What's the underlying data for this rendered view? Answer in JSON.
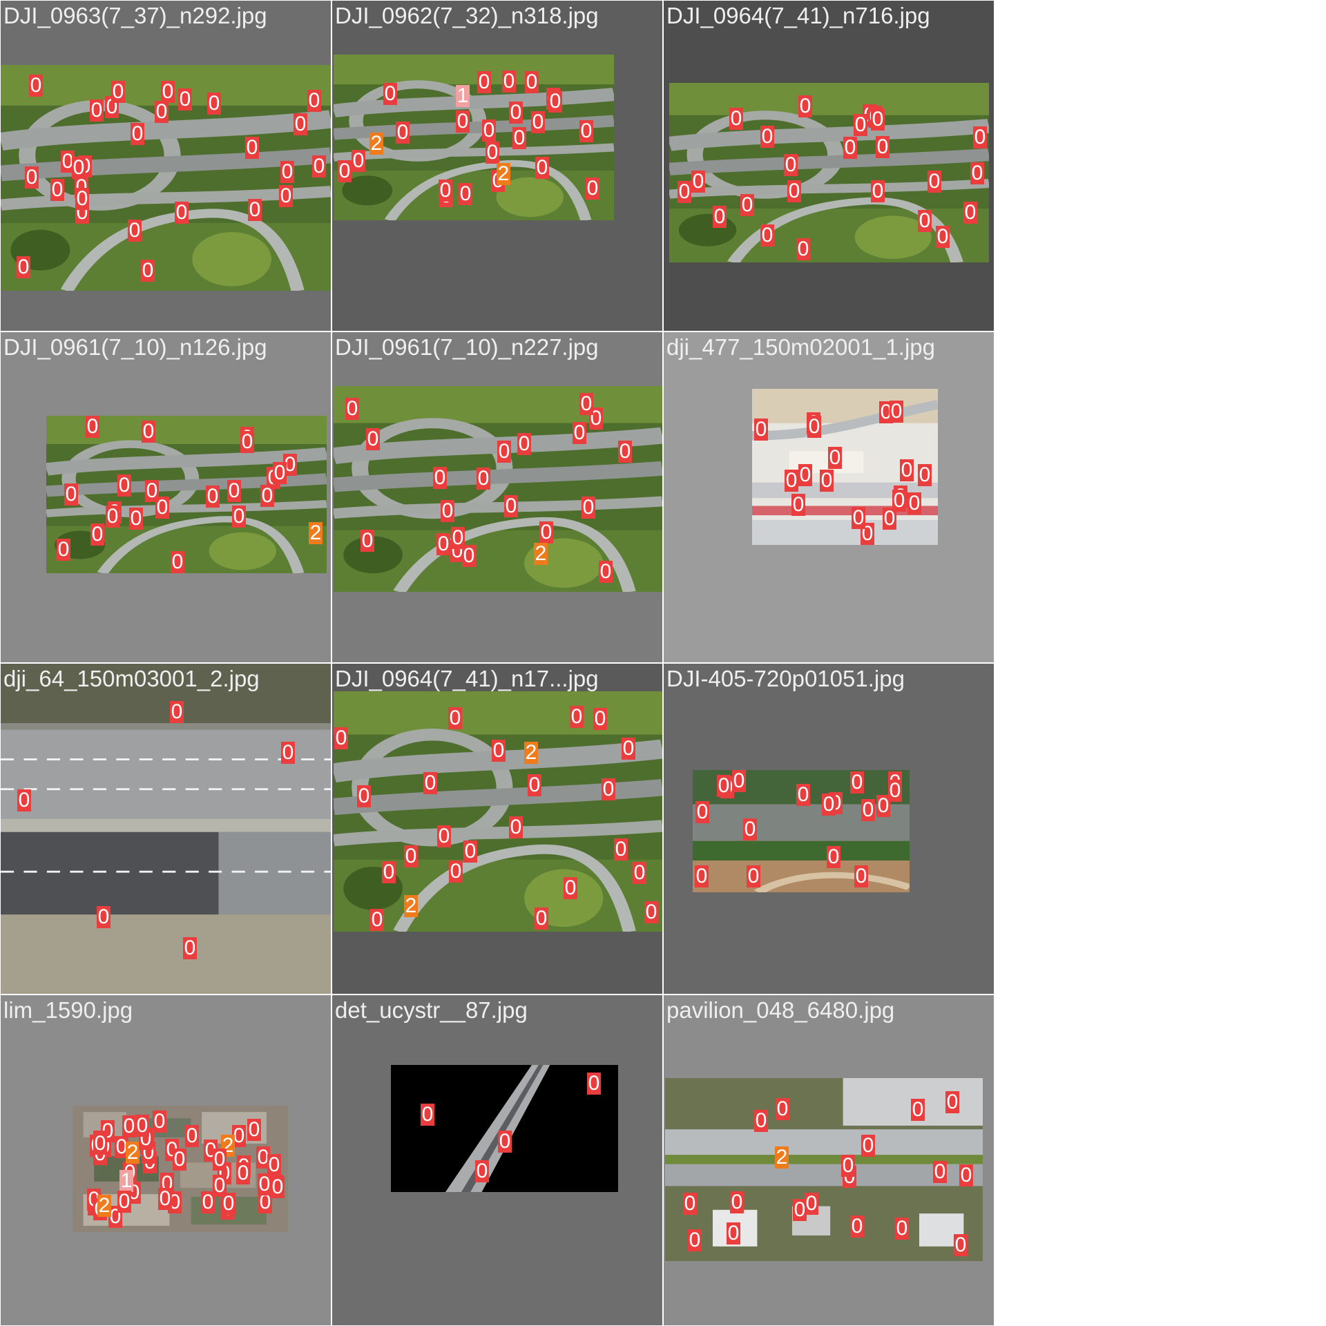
{
  "mosaic": {
    "tiles": [
      {
        "filename": "DJI_0963(7_37)_n292.jpg",
        "bg": "#6e6e6e",
        "scene": "interchange",
        "labels": [
          "0",
          "0",
          "0",
          "0",
          "0",
          "0",
          "0",
          "0",
          "0",
          "0",
          "0",
          "0",
          "0",
          "0",
          "0",
          "0",
          "0",
          "0",
          "0",
          "0",
          "0",
          "0",
          "0",
          "0",
          "0",
          "0",
          "0",
          "0"
        ]
      },
      {
        "filename": "DJI_0962(7_32)_n318.jpg",
        "bg": "#5e5e5e",
        "scene": "interchange",
        "labels": [
          "0",
          "0",
          "0",
          "0",
          "0",
          "0",
          "0",
          "0",
          "0",
          "0",
          "0",
          "0",
          "0",
          "0",
          "0",
          "0",
          "0",
          "0",
          "0",
          "0",
          "1",
          "2",
          "2",
          "0",
          "0"
        ]
      },
      {
        "filename": "DJI_0964(7_41)_n716.jpg",
        "bg": "#4e4e4e",
        "scene": "interchange",
        "labels": [
          "0",
          "0",
          "0",
          "0",
          "0",
          "0",
          "0",
          "0",
          "0",
          "0",
          "0",
          "0",
          "0",
          "0",
          "0",
          "0",
          "0",
          "0",
          "0",
          "0",
          "0",
          "0",
          "0",
          "0"
        ]
      },
      {
        "filename": "DJI_0961(7_10)_n126.jpg",
        "bg": "#8a8a8a",
        "scene": "interchange",
        "labels": [
          "0",
          "0",
          "0",
          "0",
          "0",
          "0",
          "0",
          "0",
          "0",
          "0",
          "0",
          "0",
          "0",
          "0",
          "0",
          "0",
          "0",
          "0",
          "0",
          "0",
          "0",
          "2"
        ]
      },
      {
        "filename": "DJI_0961(7_10)_n227.jpg",
        "bg": "#7c7c7c",
        "scene": "interchange",
        "labels": [
          "0",
          "0",
          "0",
          "0",
          "0",
          "0",
          "0",
          "0",
          "0",
          "0",
          "0",
          "0",
          "0",
          "0",
          "0",
          "0",
          "0",
          "0",
          "2",
          "0",
          "0"
        ]
      },
      {
        "filename": "dji_477_150m02001_1.jpg",
        "bg": "#9c9c9c",
        "scene": "urban",
        "labels": [
          "0",
          "0",
          "0",
          "0",
          "0",
          "0",
          "0",
          "0",
          "0",
          "0",
          "0",
          "0",
          "0",
          "0",
          "0",
          "0",
          "0",
          "0"
        ]
      },
      {
        "filename": "dji_64_150m03001_2.jpg",
        "bg": "#8c8c8c",
        "scene": "highway",
        "labels": [
          "0",
          "0",
          "0",
          "0",
          "0"
        ]
      },
      {
        "filename": "DJI_0964(7_41)_n17...jpg",
        "bg": "#5a5a5a",
        "scene": "interchange",
        "labels": [
          "0",
          "0",
          "0",
          "0",
          "0",
          "0",
          "0",
          "0",
          "0",
          "0",
          "0",
          "0",
          "0",
          "0",
          "0",
          "2",
          "2",
          "0",
          "0",
          "0",
          "0",
          "0",
          "0",
          "0"
        ]
      },
      {
        "filename": "DJI-405-720p01051.jpg",
        "bg": "#686868",
        "scene": "road",
        "labels": [
          "0",
          "0",
          "0",
          "0",
          "0",
          "0",
          "0",
          "0",
          "0",
          "0",
          "0",
          "0",
          "0",
          "0",
          "0",
          "0",
          "0"
        ]
      },
      {
        "filename": "lim_1590.jpg",
        "bg": "#8c8c8c",
        "scene": "dense",
        "labels": [
          "0",
          "0",
          "0",
          "0",
          "0",
          "0",
          "0",
          "0",
          "0",
          "0",
          "0",
          "0",
          "0",
          "0",
          "0",
          "0",
          "0",
          "0",
          "0",
          "0",
          "0",
          "0",
          "0",
          "0",
          "0",
          "0",
          "0",
          "0",
          "0",
          "0",
          "0",
          "0",
          "0",
          "0",
          "0",
          "0",
          "2",
          "2",
          "2",
          "1",
          "0",
          "0",
          "0",
          "0",
          "0",
          "0",
          "0",
          "0"
        ]
      },
      {
        "filename": "det_ucystr__87.jpg",
        "bg": "#6e6e6e",
        "scene": "masked",
        "labels": [
          "0",
          "0",
          "0",
          "0"
        ]
      },
      {
        "filename": "pavilion_048_6480.jpg",
        "bg": "#8c8c8c",
        "scene": "pavilion",
        "labels": [
          "0",
          "0",
          "0",
          "2",
          "0",
          "0",
          "0",
          "0",
          "0",
          "0",
          "0",
          "0",
          "0",
          "0",
          "0",
          "0",
          "0",
          "0",
          "0"
        ]
      }
    ]
  }
}
